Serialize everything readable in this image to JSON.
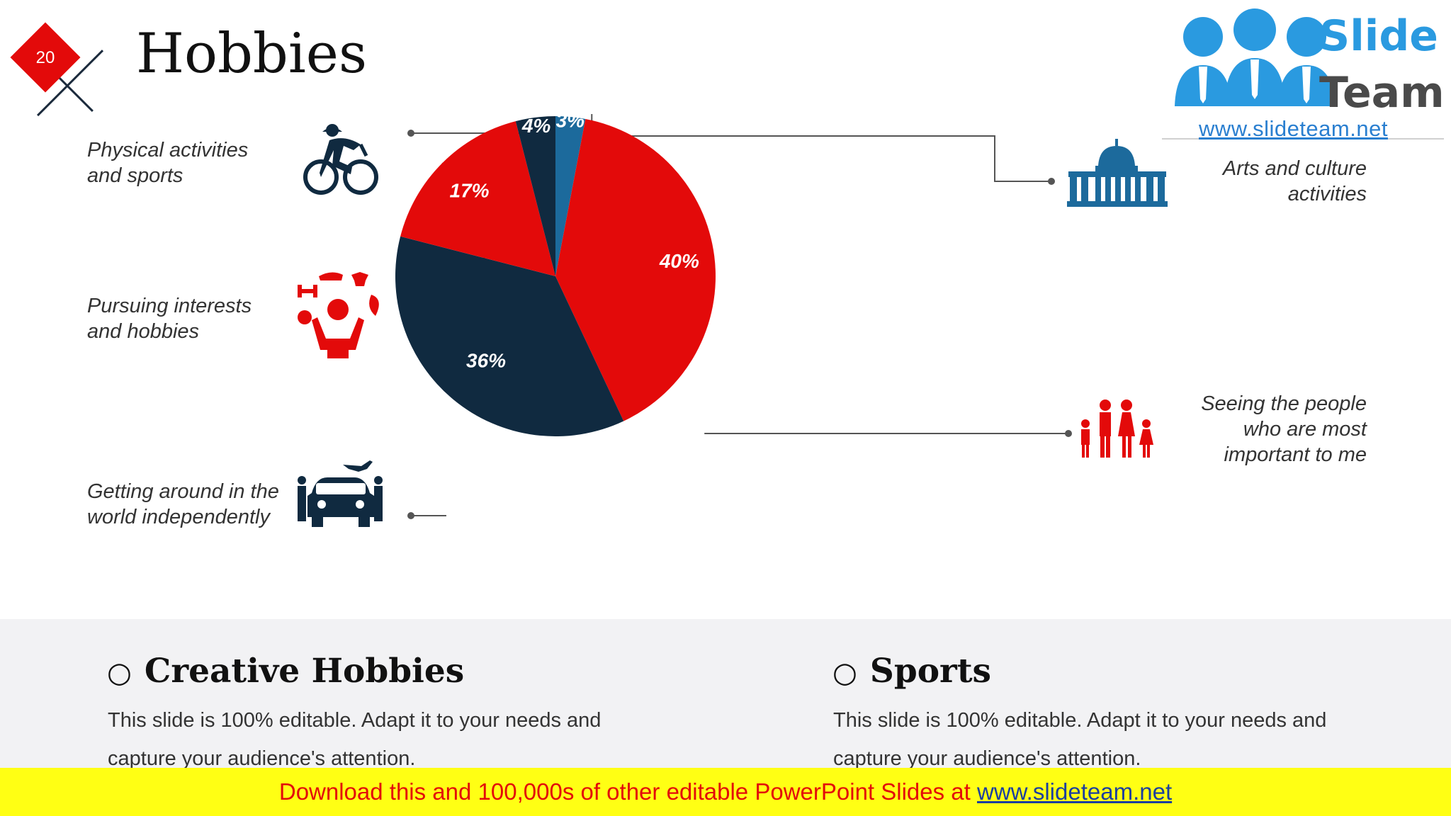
{
  "slide": {
    "number": "20",
    "title": "Hobbies"
  },
  "logo": {
    "word1": "Slide",
    "word2": "Team",
    "url": "www.slideteam.net"
  },
  "colors": {
    "red": "#e30a0a",
    "navy": "#102a40",
    "blue": "#1c6a9c",
    "banner_bg": "#ffff14",
    "panel_bg": "#f2f2f4"
  },
  "labels": {
    "physical": [
      "Physical activities",
      "and sports"
    ],
    "pursuing": [
      "Pursuing interests",
      "and hobbies"
    ],
    "getting_around": [
      "Getting around in the",
      "world independently"
    ],
    "arts": [
      "Arts and culture",
      "activities"
    ],
    "people": [
      "Seeing the people",
      "who are most",
      "important to me"
    ]
  },
  "icons": {
    "physical": "cyclist-icon",
    "pursuing": "juggling-person-icon",
    "getting_around": "car-and-plane-icon",
    "arts": "capitol-building-icon",
    "people": "family-icon"
  },
  "chart_data": {
    "type": "pie",
    "categories": [
      "Arts and culture activities",
      "Seeing the people who are most important to me",
      "Getting around in the world independently",
      "Pursuing interests and hobbies",
      "Physical activities and sports"
    ],
    "values": [
      3,
      40,
      36,
      17,
      4
    ],
    "value_labels": [
      "3%",
      "40%",
      "36%",
      "17%",
      "4%"
    ],
    "colors": [
      "#1c6a9c",
      "#e30a0a",
      "#102a40",
      "#e30a0a",
      "#102a40"
    ],
    "start": "12 o'clock",
    "direction": "clockwise"
  },
  "sections": [
    {
      "bullet": "○",
      "title": "Creative Hobbies",
      "text": "This slide is 100% editable. Adapt it to your needs and capture your audience's attention."
    },
    {
      "bullet": "○",
      "title": "Sports",
      "text": "This slide is 100% editable. Adapt it to your needs and capture your audience's attention."
    }
  ],
  "banner": {
    "text": "Download this and 100,000s of other editable PowerPoint Slides at ",
    "url": "www.slideteam.net"
  }
}
